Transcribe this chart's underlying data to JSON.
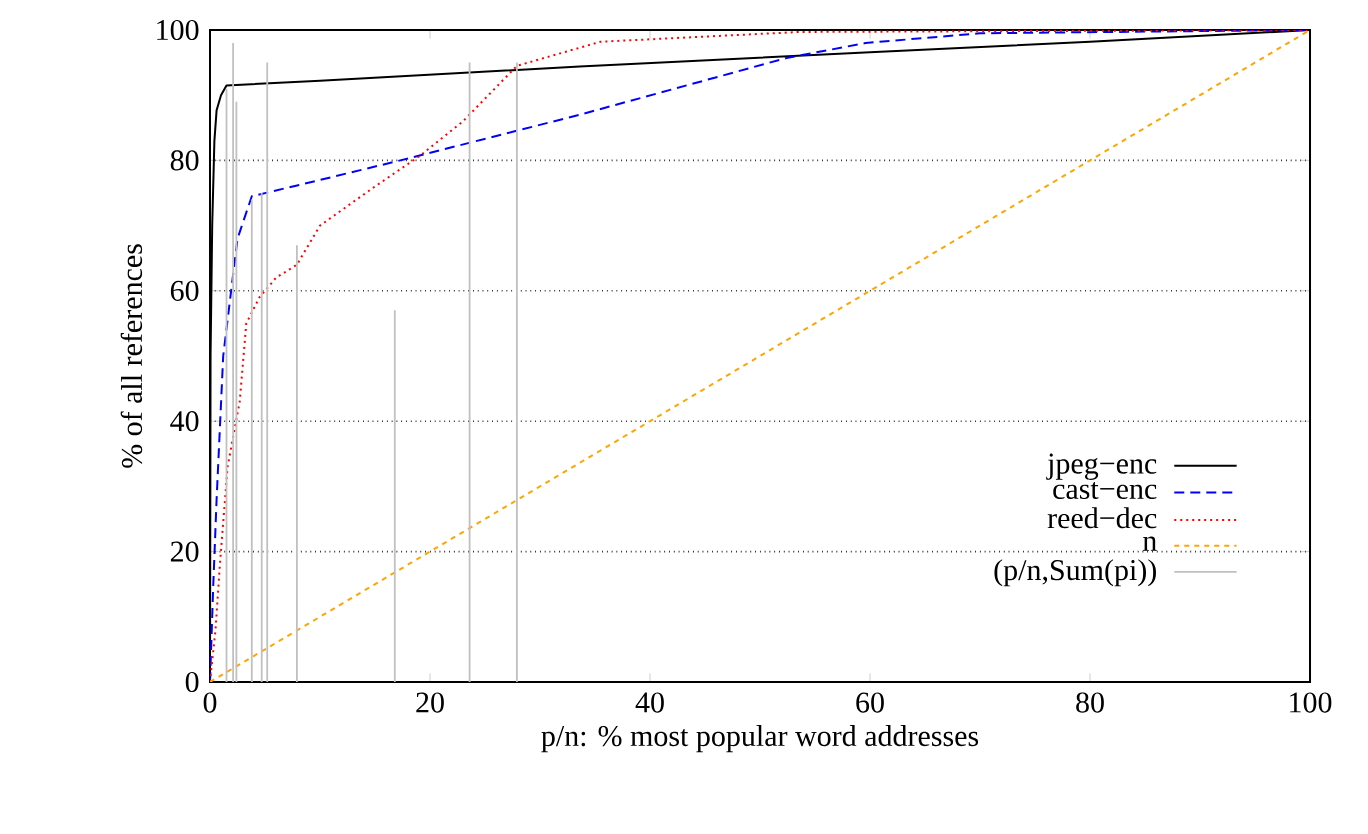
{
  "chart_data": {
    "type": "line",
    "xlabel": "p/n: % most popular word addresses",
    "ylabel": "% of all references",
    "xlim": [
      0,
      100
    ],
    "ylim": [
      0,
      100
    ],
    "xticks": [
      0,
      20,
      40,
      60,
      80,
      100
    ],
    "yticks": [
      0,
      20,
      40,
      60,
      80,
      100
    ],
    "grid": "y",
    "legend": "right",
    "series": [
      {
        "name": "jpeg−enc",
        "color": "#000000",
        "line_style": "solid",
        "x": [
          0,
          0.05,
          0.2,
          0.4,
          0.6,
          1,
          1.5,
          10,
          33.6,
          60,
          80,
          100
        ],
        "values": [
          0,
          50,
          70,
          83,
          87.7,
          90,
          91.5,
          92.2,
          94.4,
          96.6,
          98.2,
          100
        ]
      },
      {
        "name": "cast−enc",
        "color": "#0000ff",
        "line_style": "dashed",
        "x": [
          0,
          0.3,
          0.6,
          0.9,
          1.2,
          2.5,
          3.8,
          10,
          17.3,
          33.6,
          52.4,
          59.6,
          70,
          100
        ],
        "values": [
          0,
          15,
          28,
          39,
          50,
          68,
          74.5,
          77,
          80,
          87,
          95.7,
          98,
          99.5,
          100
        ]
      },
      {
        "name": "reed−dec",
        "color": "#ff0000",
        "line_style": "dotted",
        "x": [
          0,
          0.5,
          0.9,
          1.6,
          2.7,
          3.3,
          4.5,
          6,
          7.9,
          10,
          15,
          19,
          23,
          27.9,
          35.5,
          53.6,
          100
        ],
        "values": [
          0,
          8,
          18,
          33,
          43,
          55,
          59,
          62,
          64,
          70,
          76,
          80.6,
          86,
          94.5,
          98.2,
          99.7,
          100
        ]
      },
      {
        "name": "n",
        "color": "#ffa500",
        "line_style": "dashed",
        "x": [
          0,
          100
        ],
        "values": [
          0,
          100
        ]
      },
      {
        "name": "(p/n,Sum(pi))",
        "type": "bar",
        "color": "#c0c0c0",
        "line_style": "solid",
        "x": [
          1.5,
          2.1,
          2.4,
          3.8,
          4.7,
          5.2,
          7.9,
          16.8,
          23.6,
          27.9
        ],
        "values": [
          91,
          98,
          89,
          74,
          75,
          95,
          67,
          57,
          95,
          95
        ]
      }
    ]
  }
}
